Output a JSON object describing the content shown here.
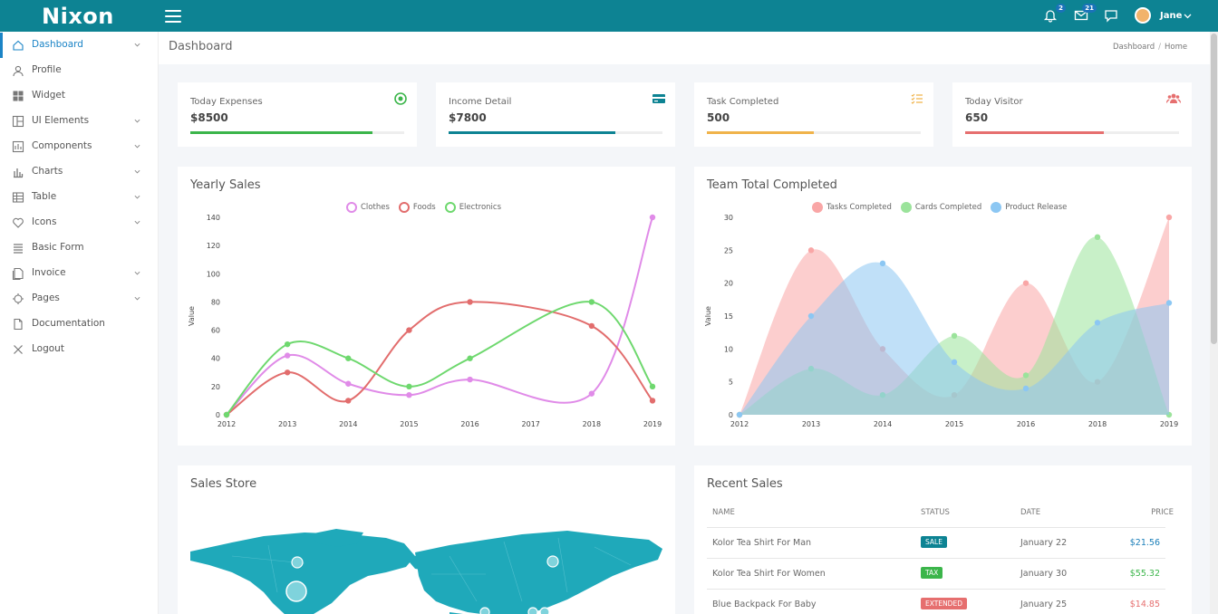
{
  "app": {
    "brand": "Nixon",
    "user_name": "Jane",
    "notif_count": "2",
    "mail_count": "21"
  },
  "sidebar": {
    "items": [
      {
        "label": "Dashboard",
        "icon": "home-icon",
        "chevron": true,
        "active": true
      },
      {
        "label": "Profile",
        "icon": "user-icon",
        "chevron": false
      },
      {
        "label": "Widget",
        "icon": "grid-icon",
        "chevron": false
      },
      {
        "label": "UI Elements",
        "icon": "layout-icon",
        "chevron": true
      },
      {
        "label": "Components",
        "icon": "components-icon",
        "chevron": true
      },
      {
        "label": "Charts",
        "icon": "bar-chart-icon",
        "chevron": true
      },
      {
        "label": "Table",
        "icon": "table-icon",
        "chevron": true
      },
      {
        "label": "Icons",
        "icon": "heart-icon",
        "chevron": true
      },
      {
        "label": "Basic Form",
        "icon": "form-icon",
        "chevron": false
      },
      {
        "label": "Invoice",
        "icon": "invoice-icon",
        "chevron": true
      },
      {
        "label": "Pages",
        "icon": "crosshair-icon",
        "chevron": true
      },
      {
        "label": "Documentation",
        "icon": "document-icon",
        "chevron": false
      },
      {
        "label": "Logout",
        "icon": "close-icon",
        "chevron": false
      }
    ]
  },
  "page": {
    "title": "Dashboard",
    "breadcrumb": [
      "Dashboard",
      "Home"
    ]
  },
  "stats": [
    {
      "label": "Today Expenses",
      "value": "$8500",
      "progress": 0.85,
      "color": "#3bb54a",
      "icon": "target-icon"
    },
    {
      "label": "Income Detail",
      "value": "$7800",
      "progress": 0.78,
      "color": "#0d8393",
      "icon": "credit-card-icon"
    },
    {
      "label": "Task Completed",
      "value": "500",
      "progress": 0.5,
      "color": "#f0b34a",
      "icon": "task-list-icon"
    },
    {
      "label": "Today Visitor",
      "value": "650",
      "progress": 0.65,
      "color": "#e66f6f",
      "icon": "users-icon"
    }
  ],
  "chart_data": [
    {
      "type": "line",
      "title": "Yearly Sales",
      "ylabel": "Value",
      "xlabel": "",
      "x": [
        "2012",
        "2013",
        "2014",
        "2015",
        "2016",
        "2017",
        "2018",
        "2019"
      ],
      "ylim": [
        0,
        140
      ],
      "yticks": [
        0,
        20,
        40,
        60,
        80,
        100,
        120,
        140
      ],
      "legend": "top",
      "series": [
        {
          "name": "Clothes",
          "color": "#e08be8",
          "values": [
            0,
            42,
            22,
            14,
            25,
            null,
            15,
            140
          ]
        },
        {
          "name": "Foods",
          "color": "#e26d6d",
          "values": [
            0,
            30,
            10,
            60,
            80,
            null,
            63,
            10
          ]
        },
        {
          "name": "Electronics",
          "color": "#6ed86e",
          "values": [
            0,
            50,
            40,
            20,
            40,
            null,
            80,
            20
          ]
        }
      ]
    },
    {
      "type": "area",
      "title": "Team Total Completed",
      "ylabel": "Value",
      "xlabel": "",
      "x": [
        "2012",
        "2013",
        "2014",
        "2015",
        "2016",
        "2018",
        "2019"
      ],
      "ylim": [
        0,
        30
      ],
      "yticks": [
        0,
        5,
        10,
        15,
        20,
        25,
        30
      ],
      "legend": "top",
      "series": [
        {
          "name": "Tasks Completed",
          "color": "#f9a6a6",
          "values": [
            0,
            25,
            10,
            3,
            20,
            5,
            30
          ]
        },
        {
          "name": "Cards Completed",
          "color": "#9be39b",
          "values": [
            0,
            7,
            3,
            12,
            6,
            27,
            0
          ]
        },
        {
          "name": "Product Release",
          "color": "#8cc7f3",
          "values": [
            0,
            15,
            23,
            8,
            4,
            14,
            17
          ]
        }
      ]
    }
  ],
  "sales_store": {
    "title": "Sales Store",
    "map_color": "#1fa9ba"
  },
  "recent_sales": {
    "title": "Recent Sales",
    "headers": [
      "NAME",
      "STATUS",
      "DATE",
      "PRICE"
    ],
    "rows": [
      {
        "name": "Kolor Tea Shirt For Man",
        "status": "SALE",
        "status_color": "#0d8393",
        "date": "January 22",
        "price": "$21.56",
        "price_color": "#1b7fb9"
      },
      {
        "name": "Kolor Tea Shirt For Women",
        "status": "TAX",
        "status_color": "#3bb54a",
        "date": "January 30",
        "price": "$55.32",
        "price_color": "#3bb54a"
      },
      {
        "name": "Blue Backpack For Baby",
        "status": "EXTENDED",
        "status_color": "#e66f6f",
        "date": "January 25",
        "price": "$14.85",
        "price_color": "#e66f6f"
      }
    ]
  }
}
